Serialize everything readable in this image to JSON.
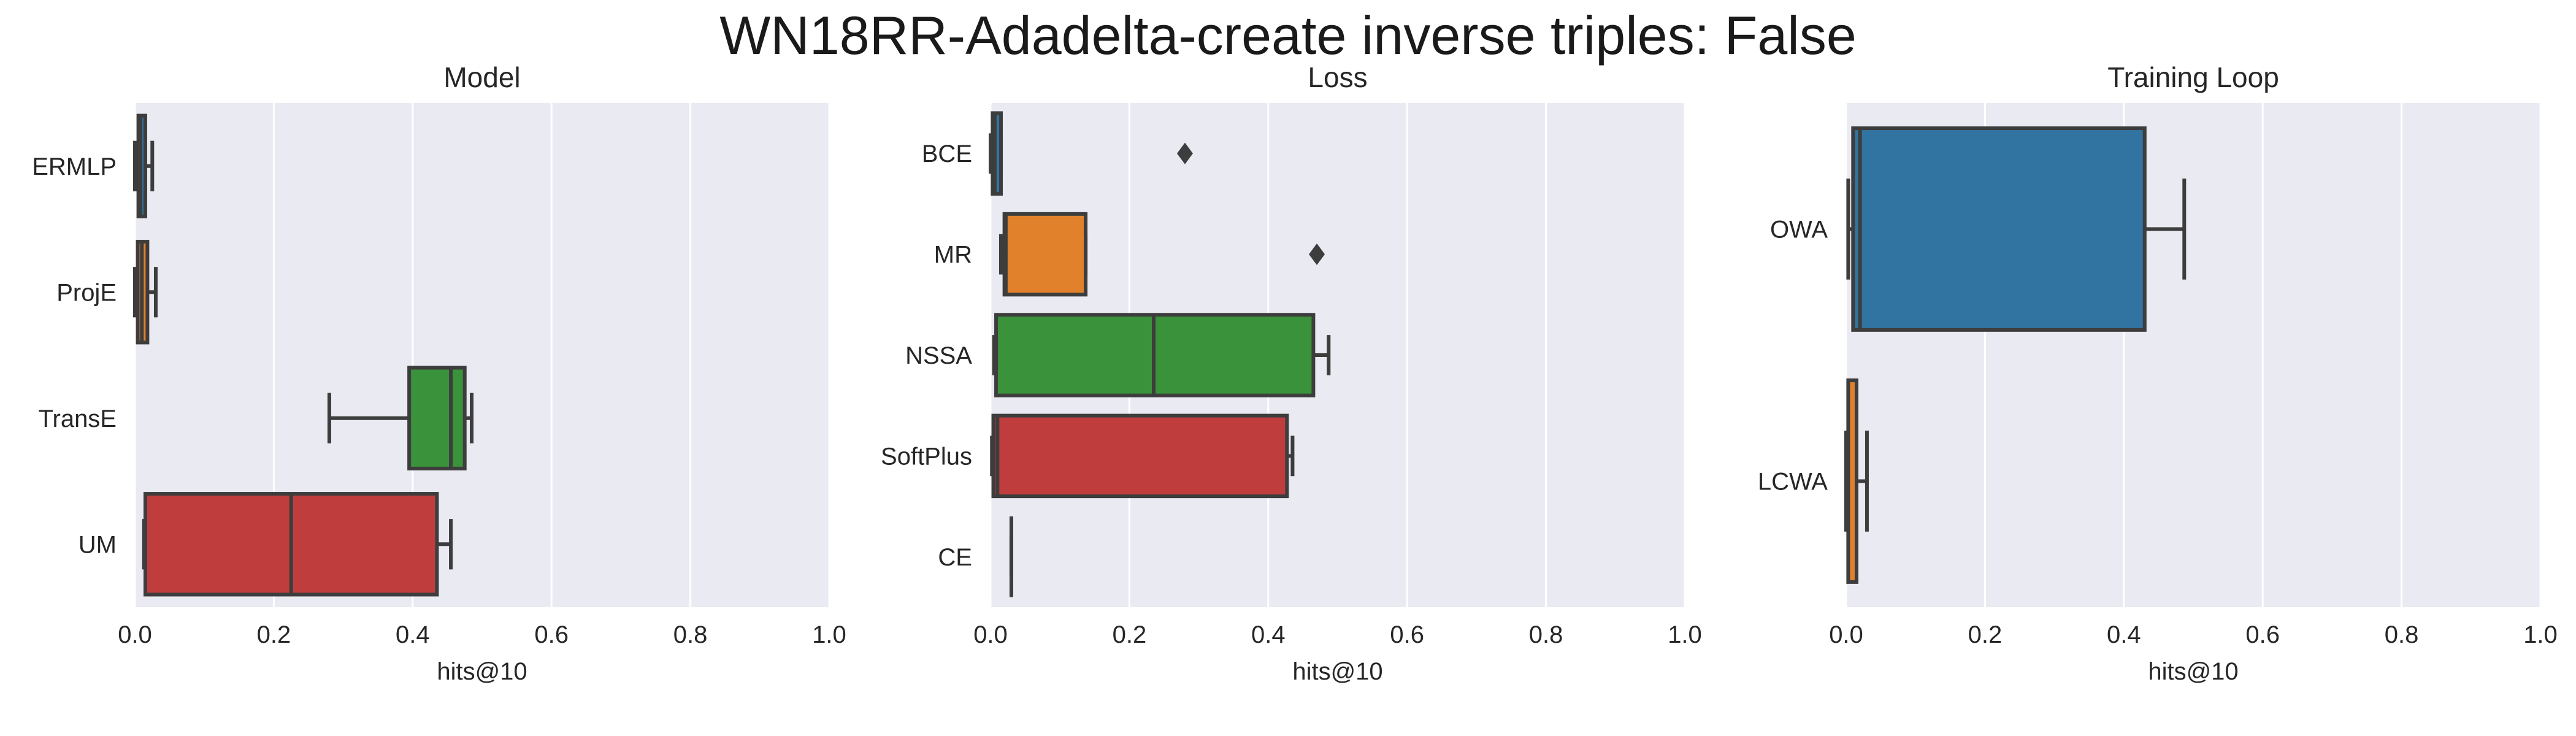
{
  "figure": {
    "title": "WN18RR-Adadelta-create inverse triples: False"
  },
  "chart_data": [
    {
      "type": "boxplot",
      "orientation": "horizontal",
      "title": "Model",
      "xlabel": "hits@10",
      "ylabel": "",
      "xlim": [
        0,
        1.0
      ],
      "xticks": [
        "0.0",
        "0.2",
        "0.4",
        "0.6",
        "0.8",
        "1.0"
      ],
      "grid": true,
      "categories": [
        "ERMLP",
        "ProjE",
        "TransE",
        "UM"
      ],
      "boxes": [
        {
          "category": "ERMLP",
          "color": "#3274a1",
          "whislo": 0.0,
          "q1": 0.005,
          "median": 0.008,
          "q3": 0.015,
          "whishi": 0.025,
          "fliers": []
        },
        {
          "category": "ProjE",
          "color": "#e1812c",
          "whislo": 0.0,
          "q1": 0.004,
          "median": 0.01,
          "q3": 0.018,
          "whishi": 0.03,
          "fliers": []
        },
        {
          "category": "TransE",
          "color": "#3a923a",
          "whislo": 0.28,
          "q1": 0.395,
          "median": 0.455,
          "q3": 0.475,
          "whishi": 0.485,
          "fliers": []
        },
        {
          "category": "UM",
          "color": "#c03d3e",
          "whislo": 0.013,
          "q1": 0.015,
          "median": 0.225,
          "q3": 0.435,
          "whishi": 0.455,
          "fliers": []
        }
      ]
    },
    {
      "type": "boxplot",
      "orientation": "horizontal",
      "title": "Loss",
      "xlabel": "hits@10",
      "ylabel": "",
      "xlim": [
        0,
        1.0
      ],
      "xticks": [
        "0.0",
        "0.2",
        "0.4",
        "0.6",
        "0.8",
        "1.0"
      ],
      "grid": true,
      "categories": [
        "BCE",
        "MR",
        "NSSA",
        "SoftPlus",
        "CE"
      ],
      "boxes": [
        {
          "category": "BCE",
          "color": "#3274a1",
          "whislo": 0.0,
          "q1": 0.003,
          "median": 0.006,
          "q3": 0.015,
          "whishi": 0.015,
          "fliers": [
            0.28
          ]
        },
        {
          "category": "MR",
          "color": "#e1812c",
          "whislo": 0.015,
          "q1": 0.02,
          "median": 0.022,
          "q3": 0.137,
          "whishi": 0.137,
          "fliers": [
            0.47
          ]
        },
        {
          "category": "NSSA",
          "color": "#3a923a",
          "whislo": 0.005,
          "q1": 0.008,
          "median": 0.235,
          "q3": 0.465,
          "whishi": 0.487,
          "fliers": []
        },
        {
          "category": "SoftPlus",
          "color": "#c03d3e",
          "whislo": 0.002,
          "q1": 0.004,
          "median": 0.01,
          "q3": 0.427,
          "whishi": 0.435,
          "fliers": []
        },
        {
          "category": "CE",
          "color": "#9372b2",
          "whislo": 0.03,
          "q1": 0.03,
          "median": 0.03,
          "q3": 0.03,
          "whishi": 0.03,
          "fliers": []
        }
      ]
    },
    {
      "type": "boxplot",
      "orientation": "horizontal",
      "title": "Training Loop",
      "xlabel": "hits@10",
      "ylabel": "",
      "xlim": [
        0,
        1.0
      ],
      "xticks": [
        "0.0",
        "0.2",
        "0.4",
        "0.6",
        "0.8",
        "1.0"
      ],
      "grid": true,
      "categories": [
        "OWA",
        "LCWA"
      ],
      "boxes": [
        {
          "category": "OWA",
          "color": "#3274a1",
          "whislo": 0.003,
          "q1": 0.01,
          "median": 0.02,
          "q3": 0.43,
          "whishi": 0.487,
          "fliers": []
        },
        {
          "category": "LCWA",
          "color": "#e1812c",
          "whislo": 0.0,
          "q1": 0.003,
          "median": 0.015,
          "q3": 0.015,
          "whishi": 0.03,
          "fliers": []
        }
      ]
    }
  ]
}
